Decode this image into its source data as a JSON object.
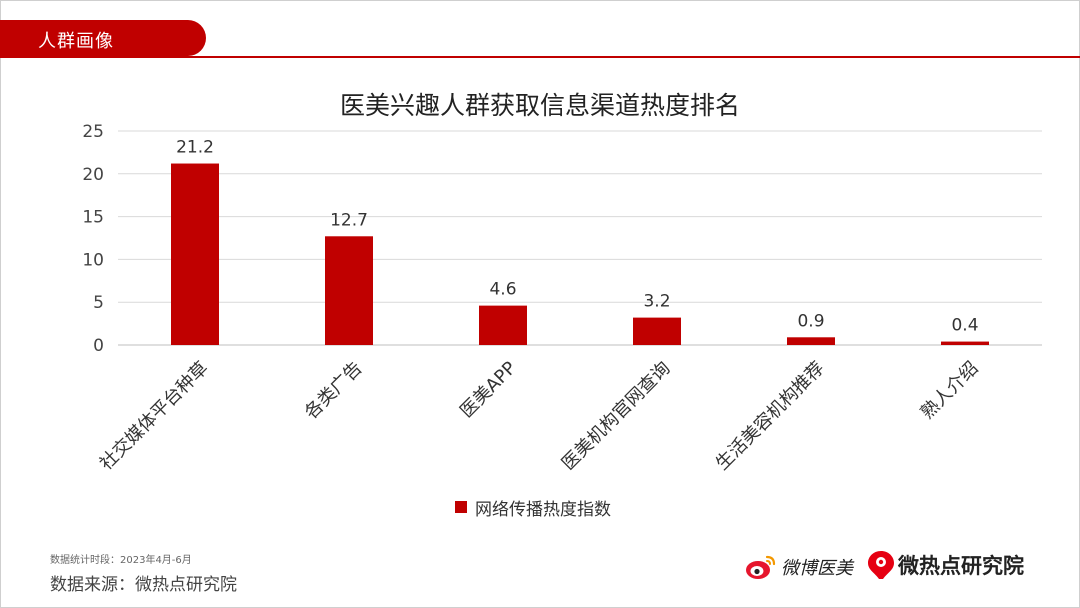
{
  "header": {
    "section_tab": "人群画像"
  },
  "chart_data": {
    "type": "bar",
    "title": "医美兴趣人群获取信息渠道热度排名",
    "categories": [
      "社交媒体平台种草",
      "各类广告",
      "医美APP",
      "医美机构官网查询",
      "生活美容机构推荐",
      "熟人介绍"
    ],
    "series": [
      {
        "name": "网络传播热度指数",
        "values": [
          21.2,
          12.7,
          4.6,
          3.2,
          0.9,
          0.4
        ]
      }
    ],
    "data_labels": [
      "21.2",
      "12.7",
      "4.6",
      "3.2",
      "0.9",
      "0.4"
    ],
    "y_ticks": [
      0,
      5,
      10,
      15,
      20,
      25
    ],
    "ylim": [
      0,
      25
    ],
    "xlabel": "",
    "ylabel": "",
    "grid": true,
    "legend_position": "bottom",
    "bar_color": "#c00000"
  },
  "footer": {
    "period_note": "数据统计时段：2023年4月-6月",
    "source_note": "数据来源：微热点研究院"
  },
  "logos": {
    "weibo_text": "微博医美",
    "wrd_text": "微热点研究院"
  },
  "colors": {
    "accent": "#c00000"
  }
}
